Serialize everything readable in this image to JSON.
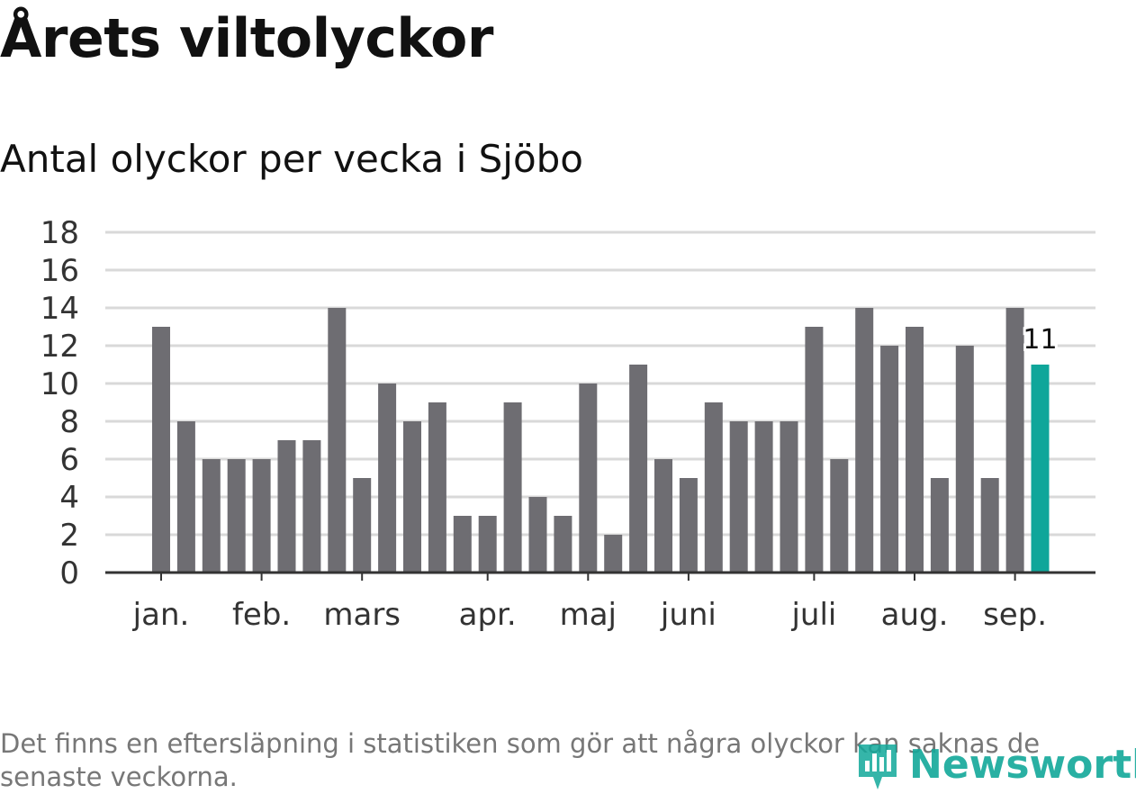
{
  "title": "Årets viltolyckor",
  "subtitle": "Antal olyckor per vecka i Sjöbo",
  "footnote": "Det finns en eftersläpning i statistiken som gör att några olyckor kan saknas de senaste veckorna.",
  "logo_text": "Newsworthy",
  "colors": {
    "bar": "#6e6d72",
    "highlight": "#0fa69a",
    "grid": "#d9d9d9",
    "axis": "#333333"
  },
  "chart_data": {
    "type": "bar",
    "title": "Antal olyckor per vecka i Sjöbo",
    "xlabel": "",
    "ylabel": "",
    "ylim": [
      0,
      18
    ],
    "yticks": [
      0,
      2,
      4,
      6,
      8,
      10,
      12,
      14,
      16,
      18
    ],
    "grid": true,
    "values": [
      13,
      8,
      6,
      6,
      6,
      7,
      7,
      14,
      5,
      10,
      8,
      9,
      3,
      3,
      9,
      4,
      3,
      10,
      2,
      11,
      6,
      5,
      9,
      8,
      8,
      8,
      13,
      6,
      14,
      12,
      13,
      5,
      12,
      5,
      14,
      11
    ],
    "month_labels": [
      {
        "label": "jan.",
        "week": 1
      },
      {
        "label": "feb.",
        "week": 5
      },
      {
        "label": "mars",
        "week": 9
      },
      {
        "label": "apr.",
        "week": 14
      },
      {
        "label": "maj",
        "week": 18
      },
      {
        "label": "juni",
        "week": 22
      },
      {
        "label": "juli",
        "week": 27
      },
      {
        "label": "aug.",
        "week": 31
      },
      {
        "label": "sep.",
        "week": 35
      }
    ],
    "highlight_index": 35,
    "annotation": "11"
  }
}
